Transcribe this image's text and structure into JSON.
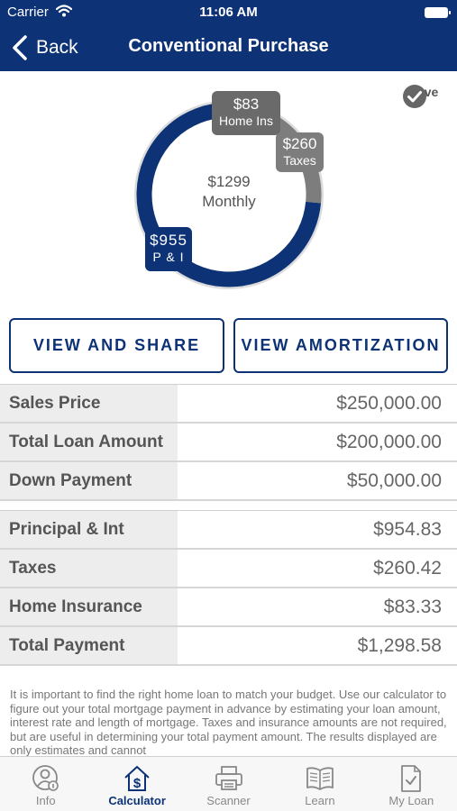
{
  "status_bar": {
    "carrier": "Carrier",
    "time": "11:06 AM"
  },
  "nav": {
    "back_label": "Back",
    "title": "Conventional Purchase"
  },
  "chart_data": {
    "type": "pie",
    "style": "donut",
    "center_amount": "$1299",
    "center_label": "Monthly",
    "slices": [
      {
        "name": "P & I",
        "label": "$955",
        "value": 954.83,
        "color": "#0d3276"
      },
      {
        "name": "Taxes",
        "label": "$260",
        "value": 260.42,
        "color": "#7d7d7d"
      },
      {
        "name": "Home Ins",
        "label": "$83",
        "value": 83.33,
        "color": "#6a6a6a"
      }
    ]
  },
  "save": {
    "label": "Save"
  },
  "buttons": {
    "view_share": "VIEW AND SHARE",
    "view_amortization": "VIEW AMORTIZATION"
  },
  "loan_table": [
    {
      "label": "Sales Price",
      "value": "$250,000.00"
    },
    {
      "label": "Total Loan Amount",
      "value": "$200,000.00"
    },
    {
      "label": "Down Payment",
      "value": "$50,000.00"
    }
  ],
  "payment_table": [
    {
      "label": "Principal & Int",
      "value": "$954.83"
    },
    {
      "label": "Taxes",
      "value": "$260.42"
    },
    {
      "label": "Home Insurance",
      "value": "$83.33"
    },
    {
      "label": "Total Payment",
      "value": "$1,298.58"
    }
  ],
  "disclaimer": "It is important to find the right home loan to match your budget. Use our calculator to figure out your total mortgage payment in advance by estimating your loan amount, interest rate and length of mortgage. Taxes and insurance amounts are not required, but are useful in determining your total payment amount.  The results displayed are only estimates and cannot",
  "tabs": [
    {
      "label": "Info",
      "icon": "person-info-icon"
    },
    {
      "label": "Calculator",
      "icon": "house-dollar-icon",
      "active": true
    },
    {
      "label": "Scanner",
      "icon": "printer-icon"
    },
    {
      "label": "Learn",
      "icon": "open-book-icon"
    },
    {
      "label": "My Loan",
      "icon": "document-check-icon"
    }
  ],
  "colors": {
    "brand": "#0d3276",
    "gray_slice": "#7d7d7d",
    "row_label_bg": "#ededed"
  }
}
